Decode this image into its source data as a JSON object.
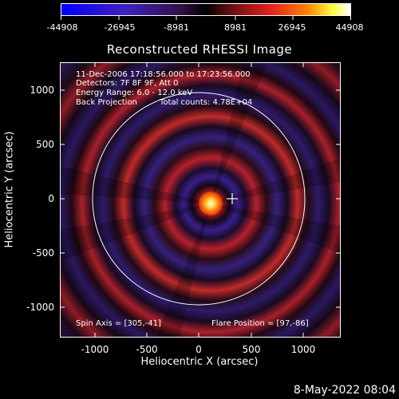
{
  "colorbar": {
    "ticks": [
      "-44908",
      "-26945",
      "-8981",
      "8981",
      "26945",
      "44908"
    ]
  },
  "title": "Reconstructed RHESSI Image",
  "info": {
    "line1": "11-Dec-2006 17:18:56.000 to 17:23:56.000",
    "line2": "Detectors: 7F 8F 9F, Att 0",
    "line3": "Energy Range: 6.0 - 12.0 keV",
    "line4a": "Back Projection",
    "line4b": "Total counts: 4.78E+04",
    "spin_axis": "Spin Axis = [305,-41]",
    "flare_position": "Flare Position = [97,-86]"
  },
  "axes": {
    "xlabel": "Heliocentric X (arcsec)",
    "ylabel": "Heliocentric Y (arcsec)",
    "yticks": [
      "1000",
      "500",
      "0",
      "-500",
      "-1000"
    ],
    "xticks": [
      "-1000",
      "-500",
      "0",
      "500",
      "1000"
    ]
  },
  "footer": {
    "date": "8-May-2022 08:04"
  },
  "colors": {
    "negative": "#3a1f8a",
    "positive": "#d02a2a",
    "peak": "#ffffd0"
  }
}
